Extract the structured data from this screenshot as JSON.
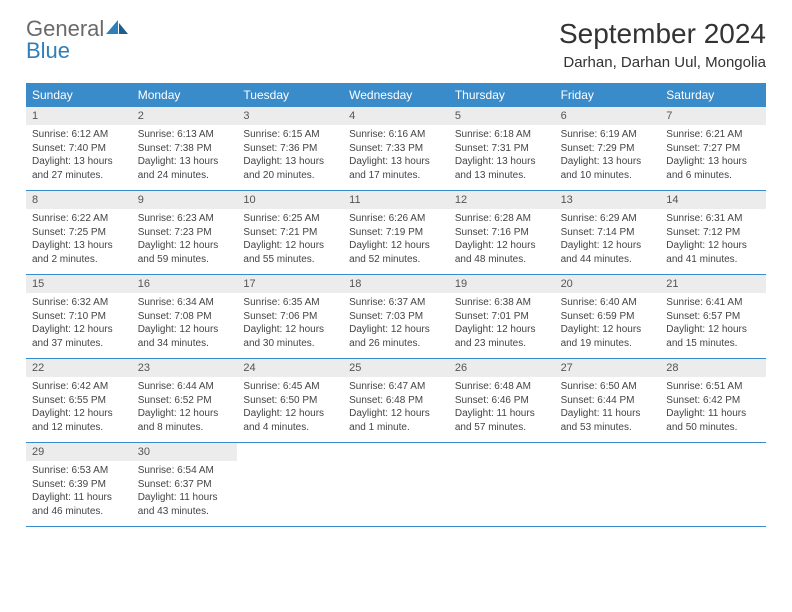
{
  "logo": {
    "text1": "General",
    "text2": "Blue"
  },
  "title": "September 2024",
  "location": "Darhan, Darhan Uul, Mongolia",
  "weekdays": [
    "Sunday",
    "Monday",
    "Tuesday",
    "Wednesday",
    "Thursday",
    "Friday",
    "Saturday"
  ],
  "colors": {
    "header_bg": "#3a8bc9",
    "header_text": "#ffffff",
    "daynum_bg": "#ececec",
    "logo_gray": "#6a6a6a",
    "logo_blue": "#2f7fb8",
    "text": "#333333"
  },
  "days": [
    {
      "n": "1",
      "sunrise": "Sunrise: 6:12 AM",
      "sunset": "Sunset: 7:40 PM",
      "dl1": "Daylight: 13 hours",
      "dl2": "and 27 minutes."
    },
    {
      "n": "2",
      "sunrise": "Sunrise: 6:13 AM",
      "sunset": "Sunset: 7:38 PM",
      "dl1": "Daylight: 13 hours",
      "dl2": "and 24 minutes."
    },
    {
      "n": "3",
      "sunrise": "Sunrise: 6:15 AM",
      "sunset": "Sunset: 7:36 PM",
      "dl1": "Daylight: 13 hours",
      "dl2": "and 20 minutes."
    },
    {
      "n": "4",
      "sunrise": "Sunrise: 6:16 AM",
      "sunset": "Sunset: 7:33 PM",
      "dl1": "Daylight: 13 hours",
      "dl2": "and 17 minutes."
    },
    {
      "n": "5",
      "sunrise": "Sunrise: 6:18 AM",
      "sunset": "Sunset: 7:31 PM",
      "dl1": "Daylight: 13 hours",
      "dl2": "and 13 minutes."
    },
    {
      "n": "6",
      "sunrise": "Sunrise: 6:19 AM",
      "sunset": "Sunset: 7:29 PM",
      "dl1": "Daylight: 13 hours",
      "dl2": "and 10 minutes."
    },
    {
      "n": "7",
      "sunrise": "Sunrise: 6:21 AM",
      "sunset": "Sunset: 7:27 PM",
      "dl1": "Daylight: 13 hours",
      "dl2": "and 6 minutes."
    },
    {
      "n": "8",
      "sunrise": "Sunrise: 6:22 AM",
      "sunset": "Sunset: 7:25 PM",
      "dl1": "Daylight: 13 hours",
      "dl2": "and 2 minutes."
    },
    {
      "n": "9",
      "sunrise": "Sunrise: 6:23 AM",
      "sunset": "Sunset: 7:23 PM",
      "dl1": "Daylight: 12 hours",
      "dl2": "and 59 minutes."
    },
    {
      "n": "10",
      "sunrise": "Sunrise: 6:25 AM",
      "sunset": "Sunset: 7:21 PM",
      "dl1": "Daylight: 12 hours",
      "dl2": "and 55 minutes."
    },
    {
      "n": "11",
      "sunrise": "Sunrise: 6:26 AM",
      "sunset": "Sunset: 7:19 PM",
      "dl1": "Daylight: 12 hours",
      "dl2": "and 52 minutes."
    },
    {
      "n": "12",
      "sunrise": "Sunrise: 6:28 AM",
      "sunset": "Sunset: 7:16 PM",
      "dl1": "Daylight: 12 hours",
      "dl2": "and 48 minutes."
    },
    {
      "n": "13",
      "sunrise": "Sunrise: 6:29 AM",
      "sunset": "Sunset: 7:14 PM",
      "dl1": "Daylight: 12 hours",
      "dl2": "and 44 minutes."
    },
    {
      "n": "14",
      "sunrise": "Sunrise: 6:31 AM",
      "sunset": "Sunset: 7:12 PM",
      "dl1": "Daylight: 12 hours",
      "dl2": "and 41 minutes."
    },
    {
      "n": "15",
      "sunrise": "Sunrise: 6:32 AM",
      "sunset": "Sunset: 7:10 PM",
      "dl1": "Daylight: 12 hours",
      "dl2": "and 37 minutes."
    },
    {
      "n": "16",
      "sunrise": "Sunrise: 6:34 AM",
      "sunset": "Sunset: 7:08 PM",
      "dl1": "Daylight: 12 hours",
      "dl2": "and 34 minutes."
    },
    {
      "n": "17",
      "sunrise": "Sunrise: 6:35 AM",
      "sunset": "Sunset: 7:06 PM",
      "dl1": "Daylight: 12 hours",
      "dl2": "and 30 minutes."
    },
    {
      "n": "18",
      "sunrise": "Sunrise: 6:37 AM",
      "sunset": "Sunset: 7:03 PM",
      "dl1": "Daylight: 12 hours",
      "dl2": "and 26 minutes."
    },
    {
      "n": "19",
      "sunrise": "Sunrise: 6:38 AM",
      "sunset": "Sunset: 7:01 PM",
      "dl1": "Daylight: 12 hours",
      "dl2": "and 23 minutes."
    },
    {
      "n": "20",
      "sunrise": "Sunrise: 6:40 AM",
      "sunset": "Sunset: 6:59 PM",
      "dl1": "Daylight: 12 hours",
      "dl2": "and 19 minutes."
    },
    {
      "n": "21",
      "sunrise": "Sunrise: 6:41 AM",
      "sunset": "Sunset: 6:57 PM",
      "dl1": "Daylight: 12 hours",
      "dl2": "and 15 minutes."
    },
    {
      "n": "22",
      "sunrise": "Sunrise: 6:42 AM",
      "sunset": "Sunset: 6:55 PM",
      "dl1": "Daylight: 12 hours",
      "dl2": "and 12 minutes."
    },
    {
      "n": "23",
      "sunrise": "Sunrise: 6:44 AM",
      "sunset": "Sunset: 6:52 PM",
      "dl1": "Daylight: 12 hours",
      "dl2": "and 8 minutes."
    },
    {
      "n": "24",
      "sunrise": "Sunrise: 6:45 AM",
      "sunset": "Sunset: 6:50 PM",
      "dl1": "Daylight: 12 hours",
      "dl2": "and 4 minutes."
    },
    {
      "n": "25",
      "sunrise": "Sunrise: 6:47 AM",
      "sunset": "Sunset: 6:48 PM",
      "dl1": "Daylight: 12 hours",
      "dl2": "and 1 minute."
    },
    {
      "n": "26",
      "sunrise": "Sunrise: 6:48 AM",
      "sunset": "Sunset: 6:46 PM",
      "dl1": "Daylight: 11 hours",
      "dl2": "and 57 minutes."
    },
    {
      "n": "27",
      "sunrise": "Sunrise: 6:50 AM",
      "sunset": "Sunset: 6:44 PM",
      "dl1": "Daylight: 11 hours",
      "dl2": "and 53 minutes."
    },
    {
      "n": "28",
      "sunrise": "Sunrise: 6:51 AM",
      "sunset": "Sunset: 6:42 PM",
      "dl1": "Daylight: 11 hours",
      "dl2": "and 50 minutes."
    },
    {
      "n": "29",
      "sunrise": "Sunrise: 6:53 AM",
      "sunset": "Sunset: 6:39 PM",
      "dl1": "Daylight: 11 hours",
      "dl2": "and 46 minutes."
    },
    {
      "n": "30",
      "sunrise": "Sunrise: 6:54 AM",
      "sunset": "Sunset: 6:37 PM",
      "dl1": "Daylight: 11 hours",
      "dl2": "and 43 minutes."
    }
  ]
}
